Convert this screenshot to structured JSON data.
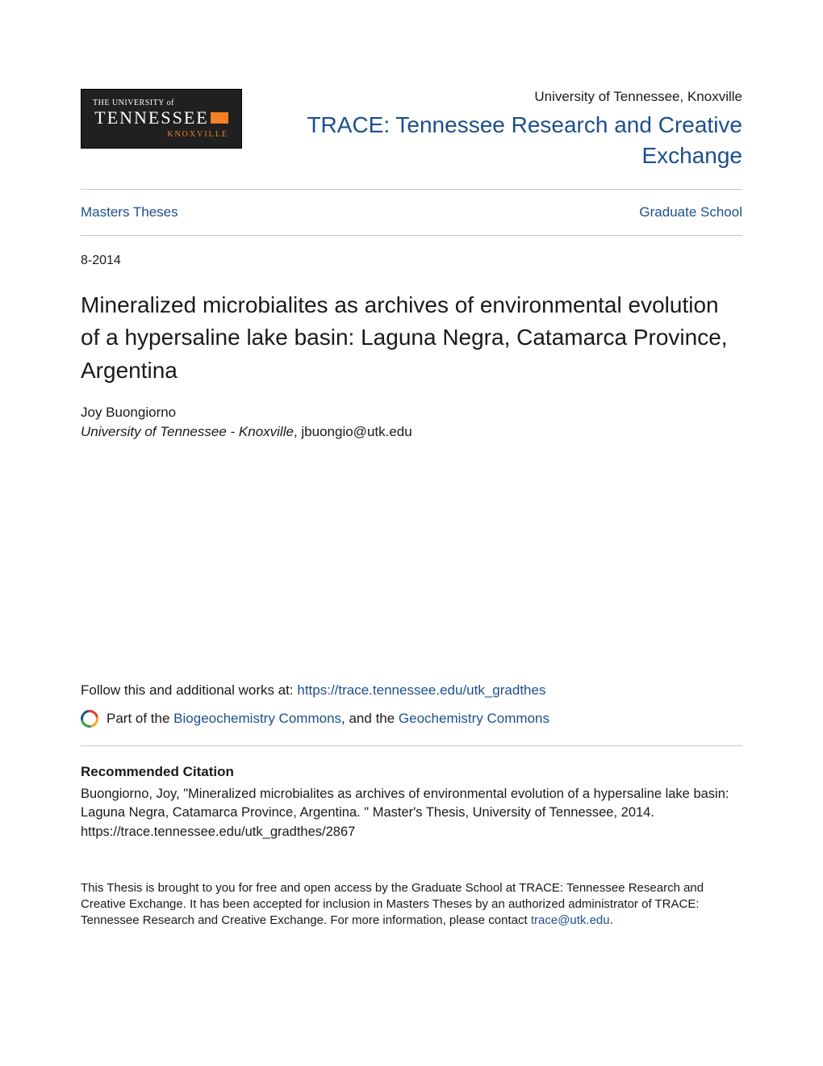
{
  "colors": {
    "link": "#1d4f8b",
    "text": "#1a1a1a",
    "divider": "#c8c8c8",
    "logo_bg": "#202020",
    "logo_orange": "#f58025",
    "background": "#ffffff"
  },
  "header": {
    "logo": {
      "line1": "THE UNIVERSITY of",
      "line2": "TENNESSEE",
      "line3": "KNOXVILLE"
    },
    "institution": "University of Tennessee, Knoxville",
    "repo_title": "TRACE: Tennessee Research and Creative Exchange"
  },
  "nav": {
    "left": "Masters Theses",
    "right": "Graduate School"
  },
  "date": "8-2014",
  "title": "Mineralized microbialites as archives of environmental evolution of a hypersaline lake basin: Laguna Negra, Catamarca Province, Argentina",
  "author": {
    "name": "Joy Buongiorno",
    "affiliation_institution": "University of Tennessee - Knoxville",
    "affiliation_email": ", jbuongio@utk.edu"
  },
  "follow": {
    "prefix": "Follow this and additional works at: ",
    "url_text": "https://trace.tennessee.edu/utk_gradthes"
  },
  "partof": {
    "prefix": "Part of the ",
    "link1": "Biogeochemistry Commons",
    "mid": ", and the ",
    "link2": "Geochemistry Commons"
  },
  "citation": {
    "heading": "Recommended Citation",
    "text": "Buongiorno, Joy, \"Mineralized microbialites as archives of environmental evolution of a hypersaline lake basin: Laguna Negra, Catamarca Province, Argentina. \" Master's Thesis, University of Tennessee, 2014. https://trace.tennessee.edu/utk_gradthes/2867"
  },
  "disclaimer": {
    "text_before": "This Thesis is brought to you for free and open access by the Graduate School at TRACE: Tennessee Research and Creative Exchange. It has been accepted for inclusion in Masters Theses by an authorized administrator of TRACE: Tennessee Research and Creative Exchange. For more information, please contact ",
    "email": "trace@utk.edu",
    "text_after": "."
  }
}
